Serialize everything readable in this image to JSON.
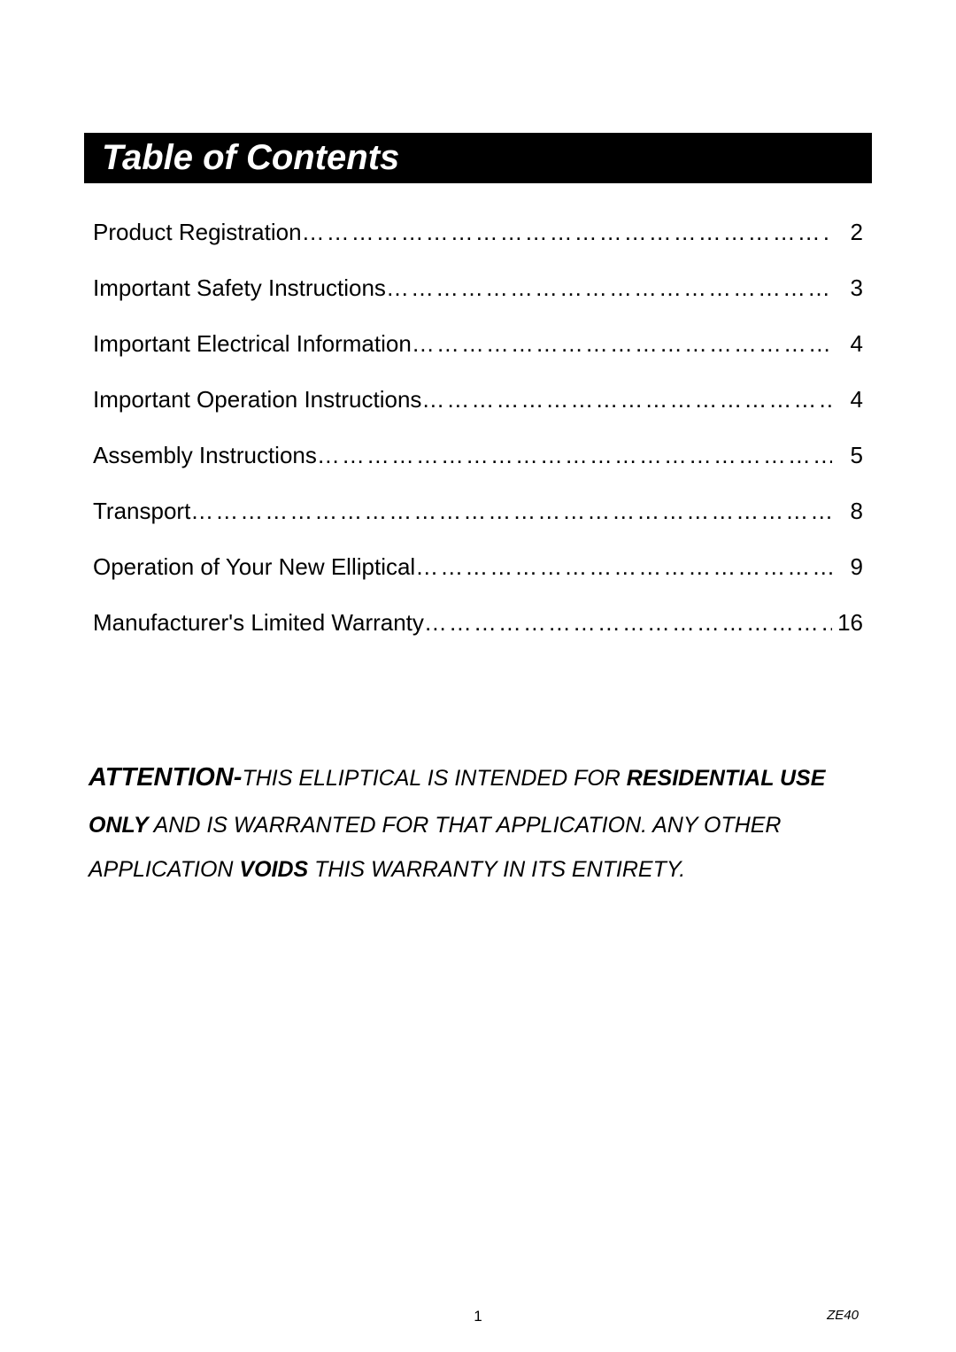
{
  "title": "Table of Contents",
  "toc": [
    {
      "label": "Product Registration",
      "page": "2"
    },
    {
      "label": "Important Safety Instructions",
      "page": "3"
    },
    {
      "label": "Important Electrical Information",
      "page": "4"
    },
    {
      "label": "Important Operation Instructions",
      "page": "4"
    },
    {
      "label": "Assembly Instructions",
      "page": "5"
    },
    {
      "label": "Transport",
      "page": "8"
    },
    {
      "label": "Operation of Your New Elliptical",
      "page": "9"
    },
    {
      "label": "Manufacturer's Limited Warranty",
      "page": "16"
    }
  ],
  "attention": {
    "prefix": "ATTENTION-",
    "text1": "THIS ELLIPTICAL IS INTENDED FOR ",
    "bold1": "RESIDENTIAL USE ONLY",
    "text2": " AND IS WARRANTED FOR THAT APPLICATION. ANY OTHER APPLICATION ",
    "bold2": "VOIDS",
    "text3": " THIS WARRANTY IN ITS ENTIRETY."
  },
  "footer": {
    "page_number": "1",
    "model": "ZE40"
  },
  "styling": {
    "page_bg": "#ffffff",
    "title_bg": "#000000",
    "title_color": "#ffffff",
    "body_fontsize": 26,
    "title_fontsize": 40,
    "attention_fontsize": 25,
    "attention_prefix_fontsize": 29,
    "footer_fontsize": 17,
    "model_fontsize": 15
  }
}
